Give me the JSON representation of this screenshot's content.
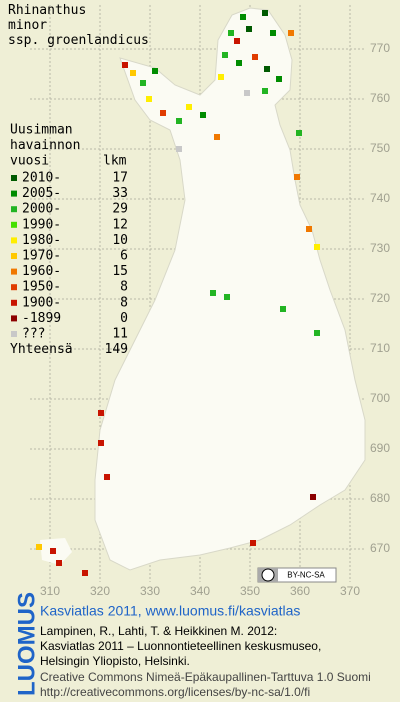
{
  "title": {
    "lines": [
      "Rhinanthus",
      "minor",
      "ssp. groenlandicus"
    ]
  },
  "legend": {
    "heading": [
      "Uusimman",
      "havainnon",
      "vuosi"
    ],
    "count_heading": "lkm",
    "entries": [
      {
        "label": "2010-",
        "count": 17,
        "color": "#005a00"
      },
      {
        "label": "2005-",
        "count": 33,
        "color": "#008c00"
      },
      {
        "label": "2000-",
        "count": 29,
        "color": "#22b422"
      },
      {
        "label": "1990-",
        "count": 12,
        "color": "#44e000"
      },
      {
        "label": "1980-",
        "count": 10,
        "color": "#ffee00"
      },
      {
        "label": "1970-",
        "count": 6,
        "color": "#ffc800"
      },
      {
        "label": "1960-",
        "count": 15,
        "color": "#f07800"
      },
      {
        "label": "1950-",
        "count": 8,
        "color": "#e03c00"
      },
      {
        "label": "1900-",
        "count": 8,
        "color": "#c81400"
      },
      {
        "label": "-1899",
        "count": 0,
        "color": "#8c0000"
      },
      {
        "label": "???",
        "count": 11,
        "color": "#c8c8c8"
      }
    ],
    "total_label": "Yhteensä",
    "total": 149
  },
  "map": {
    "y_labels": [
      770,
      760,
      750,
      740,
      730,
      720,
      710,
      700,
      690,
      680,
      670
    ],
    "x_labels": [
      310,
      320,
      330,
      340,
      350,
      360,
      370
    ]
  },
  "badge": "BY-NC-SA",
  "footer": {
    "logo": "LUOMUS",
    "link": "Kasviatlas 2011, www.luomus.fi/kasviatlas",
    "lines": [
      "Lampinen, R., Lahti, T. & Heikkinen M. 2012:",
      "Kasviatlas 2011 – Luonnontieteellinen keskusmuseo,",
      "Helsingin Yliopisto, Helsinki."
    ],
    "license": [
      "Creative Commons Nimeä-Epäkaupallinen-Tarttuva 1.0 Suomi",
      "http://creativecommons.org/licenses/by-nc-sa/1.0/fi"
    ]
  }
}
